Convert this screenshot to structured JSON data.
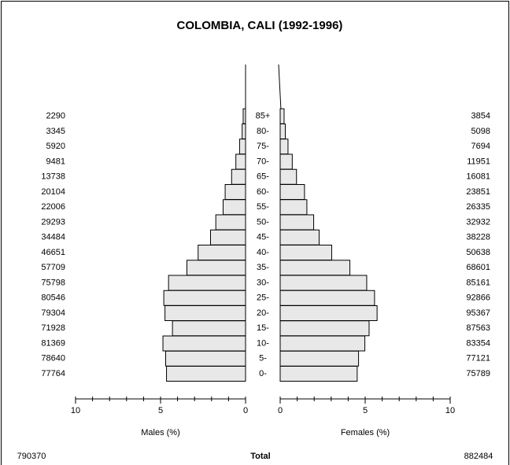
{
  "chart_data": {
    "type": "pyramid",
    "title": "COLOMBIA, CALI (1992-1996)",
    "categories": [
      "0-",
      "5-",
      "10-",
      "15-",
      "20-",
      "25-",
      "30-",
      "35-",
      "40-",
      "45-",
      "50-",
      "55-",
      "60-",
      "65-",
      "70-",
      "75-",
      "80-",
      "85+"
    ],
    "series": [
      {
        "name": "Males (%)",
        "color": "#e8e8e8",
        "values": [
          4.65,
          4.7,
          4.86,
          4.3,
          4.74,
          4.81,
          4.53,
          3.45,
          2.79,
          2.06,
          1.75,
          1.32,
          1.2,
          0.82,
          0.57,
          0.35,
          0.2,
          0.14
        ],
        "counts": [
          77764,
          78640,
          81369,
          71928,
          79304,
          80546,
          75798,
          57709,
          46651,
          34484,
          29293,
          22006,
          20104,
          13738,
          9481,
          5920,
          3345,
          2290
        ],
        "total": 790370
      },
      {
        "name": "Females (%)",
        "color": "#e8e8e8",
        "values": [
          4.53,
          4.61,
          4.98,
          5.23,
          5.7,
          5.55,
          5.09,
          4.1,
          3.03,
          2.29,
          1.97,
          1.57,
          1.43,
          0.96,
          0.71,
          0.46,
          0.3,
          0.23
        ],
        "counts": [
          75789,
          77121,
          83354,
          87563,
          95367,
          92866,
          85161,
          68601,
          50638,
          38228,
          32932,
          26335,
          23851,
          16081,
          11951,
          7694,
          5098,
          3854
        ],
        "total": 882484
      }
    ],
    "total_label": "Total",
    "xlim": [
      0,
      10
    ],
    "xticks": [
      0,
      5,
      10
    ],
    "xminorticks": [
      0,
      1,
      2,
      3,
      4,
      5,
      6,
      7,
      8,
      9,
      10
    ]
  }
}
